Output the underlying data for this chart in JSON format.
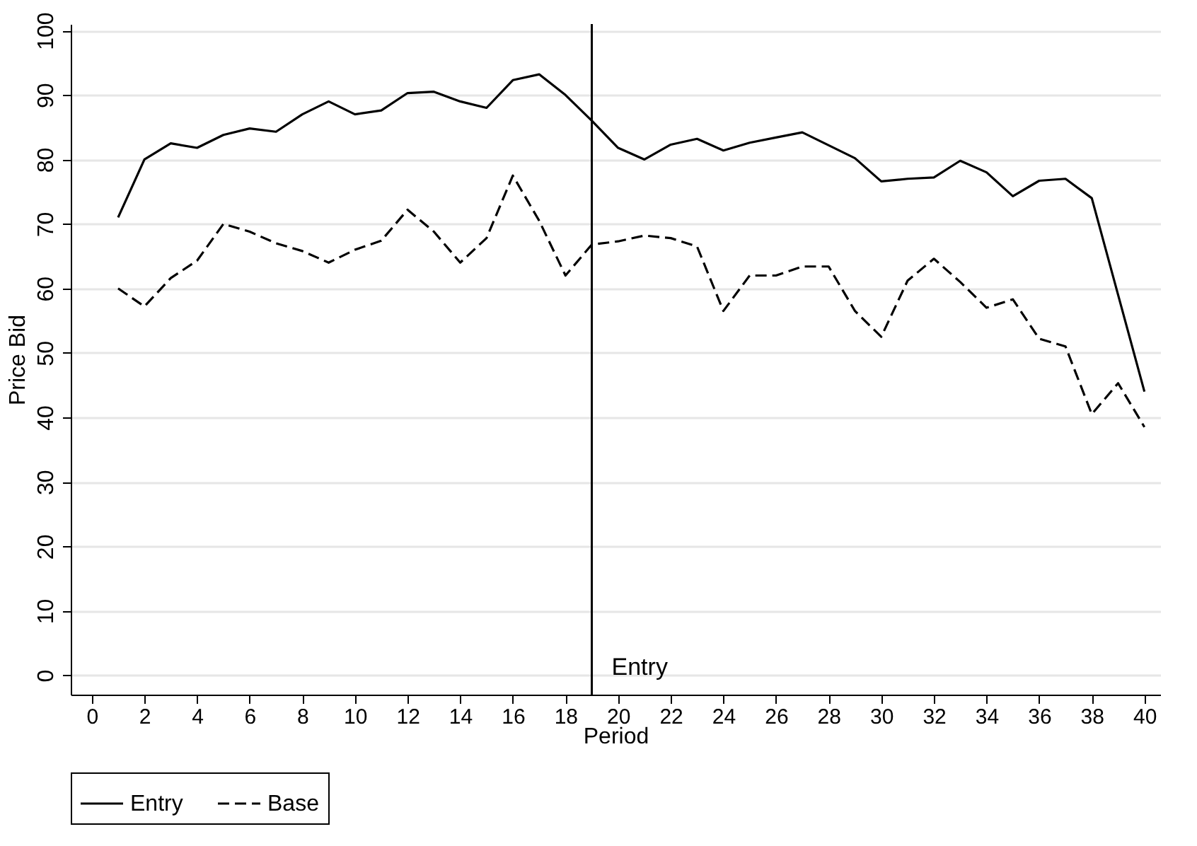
{
  "chart_data": {
    "type": "line",
    "xlabel": "Period",
    "ylabel": "Price Bid",
    "x": [
      1,
      2,
      3,
      4,
      5,
      6,
      7,
      8,
      9,
      10,
      11,
      12,
      13,
      14,
      15,
      16,
      17,
      18,
      19,
      20,
      21,
      22,
      23,
      24,
      25,
      26,
      27,
      28,
      29,
      30,
      31,
      32,
      33,
      34,
      35,
      36,
      37,
      38,
      39,
      40
    ],
    "series": [
      {
        "name": "Entry",
        "color": "#000000",
        "line_style": "solid",
        "values": [
          71,
          80,
          82.5,
          81.8,
          83.8,
          84.8,
          84.3,
          87,
          89,
          87,
          87.6,
          90.3,
          90.5,
          89,
          88,
          92.3,
          93.2,
          90,
          86,
          81.8,
          80,
          82.3,
          83.2,
          81.4,
          82.6,
          83.4,
          84.2,
          82.2,
          80.2,
          76.6,
          77,
          77.2,
          79.8,
          78,
          74.3,
          76.7,
          77,
          74,
          59,
          44
        ]
      },
      {
        "name": "Base",
        "color": "#000000",
        "line_style": "dashed",
        "values": [
          60,
          57.2,
          61.6,
          64.3,
          70,
          68.8,
          67,
          65.8,
          64,
          66,
          67.4,
          72.2,
          68.8,
          64,
          67.8,
          77.5,
          70.5,
          62,
          66.8,
          67.3,
          68.2,
          67.8,
          66.5,
          56.5,
          62,
          62,
          63.4,
          63.4,
          56.5,
          52.5,
          61.2,
          64.6,
          61,
          57,
          58.3,
          52.2,
          51,
          40.5,
          45.3,
          38.5
        ]
      }
    ],
    "xlim": [
      -0.8,
      40.6
    ],
    "xticks": [
      0,
      2,
      4,
      6,
      8,
      10,
      12,
      14,
      16,
      18,
      20,
      22,
      24,
      26,
      28,
      30,
      32,
      34,
      36,
      38,
      40
    ],
    "ylim": [
      -3,
      101
    ],
    "yticks": [
      0,
      10,
      20,
      30,
      40,
      50,
      60,
      70,
      80,
      90,
      100
    ],
    "grid": "y",
    "legend": "bottom",
    "marker": "none",
    "ref_lines": [
      {
        "axis": "x",
        "value": 19,
        "label": "Entry",
        "color": "#000000"
      }
    ]
  }
}
